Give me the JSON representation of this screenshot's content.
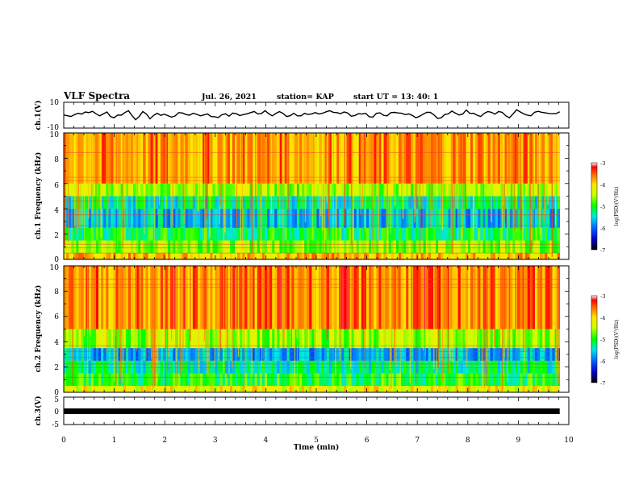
{
  "header": {
    "title": "VLF Spectra",
    "date": "Jul. 26, 2021",
    "station": "station= KAP",
    "start": "start UT =  13: 40: 1"
  },
  "chart_data": [
    {
      "type": "line",
      "panel": "ch1-waveform",
      "ylabel": "ch.1(V)",
      "ylim": [
        -10,
        10
      ],
      "yticks": [
        "10",
        "-10"
      ],
      "xlim": [
        0,
        10
      ],
      "x_end": 9.82,
      "series": [
        {
          "values": [
            0.2,
            -1,
            1.5,
            2.5,
            3,
            -0.5,
            2.5,
            -2,
            0,
            3.5,
            -3.5,
            2.8,
            -2.8,
            1.5,
            0.8,
            -1.5,
            2,
            0.5,
            1.5,
            -0.5,
            1,
            -1.2,
            0.3,
            -0.8,
            1.2,
            0.5,
            2,
            1,
            3.5,
            -0.5,
            2.8,
            -1,
            1.5,
            -0.5,
            0.5,
            2,
            1.5,
            3.5,
            2,
            2.5,
            -0.8,
            1.2,
            1.5,
            -1.5,
            1.8,
            -0.5,
            2.2,
            1.5,
            1,
            -2,
            0.8,
            2.2,
            -2.5,
            0.5,
            3.2,
            0.2,
            4,
            1.5,
            -1,
            2.8,
            0.8,
            2.2,
            -2,
            4.2,
            1,
            -0.5,
            3,
            1.8,
            1.2,
            2.6
          ]
        }
      ]
    },
    {
      "type": "heatmap",
      "panel": "ch1-spectrogram",
      "ylabel": "ch.1 Frequency (kHz)",
      "ylim": [
        0,
        10
      ],
      "yticks": [
        "0",
        "2",
        "4",
        "6",
        "8",
        "10"
      ],
      "xlim": [
        0,
        9.82
      ],
      "colorbar": {
        "label": "log(PSD)(V²/Hz)",
        "range": [
          -7,
          -3
        ],
        "ticks": [
          "-3",
          "-4",
          "-5",
          "-6",
          "-7"
        ]
      },
      "bands_log_psd": [
        {
          "freq_khz": [
            0,
            0.5
          ],
          "value": -3.9
        },
        {
          "freq_khz": [
            0.5,
            1.5
          ],
          "value": -4.6
        },
        {
          "freq_khz": [
            1.5,
            2.5
          ],
          "value": -5.1
        },
        {
          "freq_khz": [
            2.5,
            4
          ],
          "value": -5.6
        },
        {
          "freq_khz": [
            4,
            5
          ],
          "value": -5.3
        },
        {
          "freq_khz": [
            5,
            6
          ],
          "value": -4.5
        },
        {
          "freq_khz": [
            6,
            10
          ],
          "value": -3.7
        }
      ]
    },
    {
      "type": "heatmap",
      "panel": "ch2-spectrogram",
      "ylabel": "ch.2 Frequency (kHz)",
      "ylim": [
        0,
        10
      ],
      "yticks": [
        "0",
        "2",
        "4",
        "6",
        "8",
        "10"
      ],
      "xlim": [
        0,
        9.82
      ],
      "colorbar": {
        "label": "log(PSD)(V²/Hz)",
        "range": [
          -7,
          -3
        ],
        "ticks": [
          "-3",
          "-4",
          "-5",
          "-6",
          "-7"
        ]
      },
      "bands_log_psd": [
        {
          "freq_khz": [
            0,
            0.5
          ],
          "value": -4.2
        },
        {
          "freq_khz": [
            0.5,
            1.5
          ],
          "value": -5.0
        },
        {
          "freq_khz": [
            1.5,
            2.5
          ],
          "value": -5.3
        },
        {
          "freq_khz": [
            2.5,
            3.5
          ],
          "value": -5.7
        },
        {
          "freq_khz": [
            3.5,
            5
          ],
          "value": -4.6
        },
        {
          "freq_khz": [
            5,
            10
          ],
          "value": -3.6
        }
      ]
    },
    {
      "type": "line",
      "panel": "ch3-waveform",
      "ylabel": "ch.3(V)",
      "ylim": [
        -5,
        5
      ],
      "yticks": [
        "5",
        "0",
        "-5"
      ],
      "xlim": [
        0,
        10
      ],
      "x_end": 9.82,
      "xlabel": "Time (min)",
      "xticks": [
        "0",
        "1",
        "2",
        "3",
        "4",
        "5",
        "6",
        "7",
        "8",
        "9",
        "10"
      ],
      "series": [
        {
          "values": [
            0,
            0
          ]
        }
      ]
    }
  ]
}
